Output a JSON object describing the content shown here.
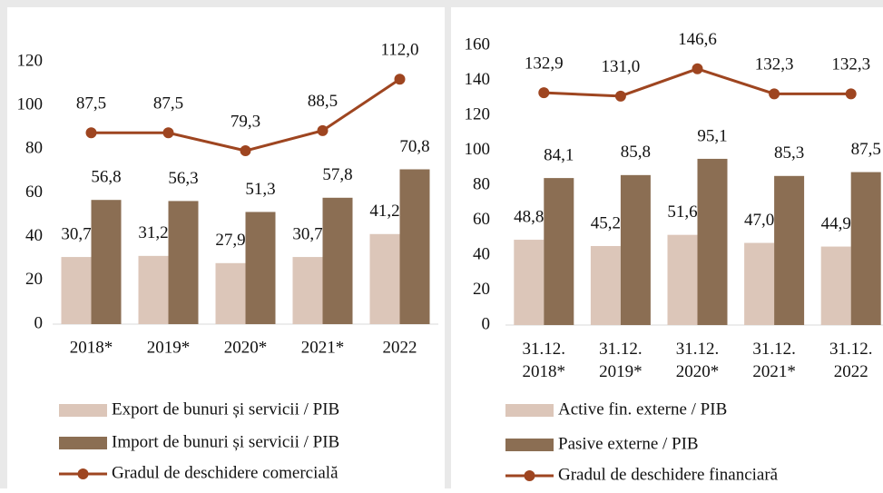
{
  "chart_data": [
    {
      "type": "bar_line",
      "categories": [
        "2018*",
        "2019*",
        "2020*",
        "2021*",
        "2022"
      ],
      "ylim": [
        0,
        120
      ],
      "yticks": [
        0,
        20,
        40,
        60,
        80,
        100,
        120
      ],
      "series": [
        {
          "name": "Export de bunuri și servicii / PIB",
          "type": "bar",
          "color": "#dcc6b9",
          "values": [
            30.7,
            31.2,
            27.9,
            30.7,
            41.2
          ],
          "value_labels": [
            "30,7",
            "31,2",
            "27,9",
            "30,7",
            "41,2"
          ]
        },
        {
          "name": "Import de bunuri și servicii / PIB",
          "type": "bar",
          "color": "#8b6e53",
          "values": [
            56.8,
            56.3,
            51.3,
            57.8,
            70.8
          ],
          "value_labels": [
            "56,8",
            "56,3",
            "51,3",
            "57,8",
            "70,8"
          ]
        },
        {
          "name": "Gradul de deschidere comercială",
          "type": "line",
          "color": "#9e4520",
          "values": [
            87.5,
            87.5,
            79.3,
            88.5,
            112.0
          ],
          "value_labels": [
            "87,5",
            "87,5",
            "79,3",
            "88,5",
            "112,0"
          ]
        }
      ]
    },
    {
      "type": "bar_line",
      "categories": [
        "31.12.\n2018*",
        "31.12.\n2019*",
        "31.12.\n2020*",
        "31.12.\n2021*",
        "31.12.\n2022"
      ],
      "ylim": [
        0,
        160
      ],
      "yticks": [
        0,
        20,
        40,
        60,
        80,
        100,
        120,
        140,
        160
      ],
      "series": [
        {
          "name": "Active fin. externe / PIB",
          "type": "bar",
          "color": "#dcc6b9",
          "values": [
            48.8,
            45.2,
            51.6,
            47.0,
            44.9
          ],
          "value_labels": [
            "48,8",
            "45,2",
            "51,6",
            "47,0",
            "44,9"
          ]
        },
        {
          "name": "Pasive externe / PIB",
          "type": "bar",
          "color": "#8b6e53",
          "values": [
            84.1,
            85.8,
            95.1,
            85.3,
            87.5
          ],
          "value_labels": [
            "84,1",
            "85,8",
            "95,1",
            "85,3",
            "87,5"
          ]
        },
        {
          "name": "Gradul de deschidere financiară",
          "type": "line",
          "color": "#9e4520",
          "values": [
            132.9,
            131.0,
            146.6,
            132.3,
            132.3
          ],
          "value_labels": [
            "132,9",
            "131,0",
            "146,6",
            "132,3",
            "132,3"
          ]
        }
      ]
    }
  ]
}
